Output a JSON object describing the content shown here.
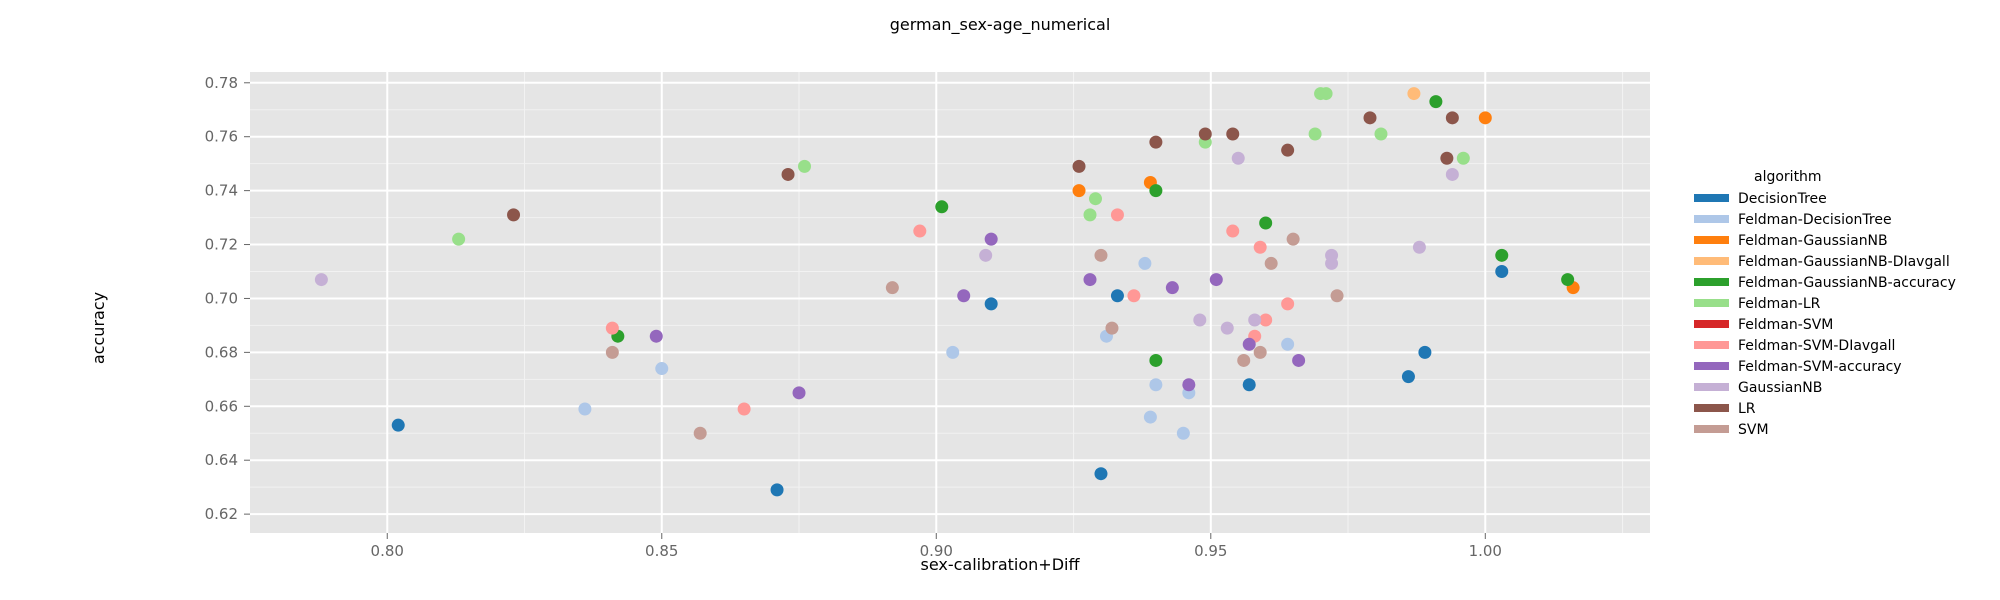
{
  "chart_data": {
    "type": "scatter",
    "title": "german_sex-age_numerical",
    "xlabel": "sex-calibration+Diff",
    "ylabel": "accuracy",
    "xlim": [
      0.775,
      1.03
    ],
    "ylim": [
      0.613,
      0.784
    ],
    "x_ticks": [
      0.8,
      0.85,
      0.9,
      0.95,
      1.0
    ],
    "x_tick_labels": [
      "0.80",
      "0.85",
      "0.90",
      "0.95",
      "1.00"
    ],
    "y_ticks": [
      0.62,
      0.64,
      0.66,
      0.68,
      0.7,
      0.72,
      0.74,
      0.76,
      0.78
    ],
    "y_tick_labels": [
      "0.62",
      "0.64",
      "0.66",
      "0.68",
      "0.70",
      "0.72",
      "0.74",
      "0.76",
      "0.78"
    ],
    "grid": true,
    "legend_title": "algorithm",
    "legend_position": "right",
    "series": [
      {
        "name": "DecisionTree",
        "color": "#1f77b4",
        "points": [
          [
            0.802,
            0.653
          ],
          [
            0.871,
            0.629
          ],
          [
            0.91,
            0.698
          ],
          [
            0.93,
            0.635
          ],
          [
            0.933,
            0.701
          ],
          [
            0.957,
            0.668
          ],
          [
            0.986,
            0.671
          ],
          [
            0.989,
            0.68
          ],
          [
            1.003,
            0.71
          ]
        ]
      },
      {
        "name": "Feldman-DecisionTree",
        "color": "#aec7e8",
        "points": [
          [
            0.836,
            0.659
          ],
          [
            0.85,
            0.674
          ],
          [
            0.903,
            0.68
          ],
          [
            0.931,
            0.686
          ],
          [
            0.938,
            0.713
          ],
          [
            0.939,
            0.656
          ],
          [
            0.94,
            0.668
          ],
          [
            0.945,
            0.65
          ],
          [
            0.946,
            0.665
          ],
          [
            0.964,
            0.683
          ]
        ]
      },
      {
        "name": "Feldman-GaussianNB",
        "color": "#ff7f0e",
        "points": [
          [
            0.926,
            0.74
          ],
          [
            0.939,
            0.743
          ],
          [
            1.0,
            0.767
          ],
          [
            1.016,
            0.704
          ]
        ]
      },
      {
        "name": "Feldman-GaussianNB-DIavgall",
        "color": "#ffbb78",
        "points": [
          [
            0.987,
            0.776
          ]
        ]
      },
      {
        "name": "Feldman-GaussianNB-accuracy",
        "color": "#2ca02c",
        "points": [
          [
            0.842,
            0.686
          ],
          [
            0.901,
            0.734
          ],
          [
            0.94,
            0.74
          ],
          [
            0.94,
            0.677
          ],
          [
            0.96,
            0.728
          ],
          [
            0.991,
            0.773
          ],
          [
            1.003,
            0.716
          ],
          [
            1.015,
            0.707
          ]
        ]
      },
      {
        "name": "Feldman-LR",
        "color": "#98df8a",
        "points": [
          [
            0.813,
            0.722
          ],
          [
            0.876,
            0.749
          ],
          [
            0.928,
            0.731
          ],
          [
            0.929,
            0.737
          ],
          [
            0.949,
            0.758
          ],
          [
            0.969,
            0.761
          ],
          [
            0.97,
            0.776
          ],
          [
            0.971,
            0.776
          ],
          [
            0.981,
            0.761
          ],
          [
            0.996,
            0.752
          ]
        ]
      },
      {
        "name": "Feldman-SVM",
        "color": "#d62728",
        "points": []
      },
      {
        "name": "Feldman-SVM-DIavgall",
        "color": "#ff9896",
        "points": [
          [
            0.841,
            0.689
          ],
          [
            0.865,
            0.659
          ],
          [
            0.897,
            0.725
          ],
          [
            0.933,
            0.731
          ],
          [
            0.936,
            0.701
          ],
          [
            0.954,
            0.725
          ],
          [
            0.958,
            0.686
          ],
          [
            0.959,
            0.719
          ],
          [
            0.96,
            0.692
          ],
          [
            0.964,
            0.698
          ]
        ]
      },
      {
        "name": "Feldman-SVM-accuracy",
        "color": "#9467bd",
        "points": [
          [
            0.849,
            0.686
          ],
          [
            0.875,
            0.665
          ],
          [
            0.905,
            0.701
          ],
          [
            0.91,
            0.722
          ],
          [
            0.928,
            0.707
          ],
          [
            0.943,
            0.704
          ],
          [
            0.946,
            0.668
          ],
          [
            0.951,
            0.707
          ],
          [
            0.957,
            0.683
          ],
          [
            0.966,
            0.677
          ]
        ]
      },
      {
        "name": "GaussianNB",
        "color": "#c5b0d5",
        "points": [
          [
            0.788,
            0.707
          ],
          [
            0.909,
            0.716
          ],
          [
            0.948,
            0.692
          ],
          [
            0.953,
            0.689
          ],
          [
            0.955,
            0.752
          ],
          [
            0.958,
            0.692
          ],
          [
            0.972,
            0.713
          ],
          [
            0.972,
            0.716
          ],
          [
            0.988,
            0.719
          ],
          [
            0.994,
            0.746
          ]
        ]
      },
      {
        "name": "LR",
        "color": "#8c564b",
        "points": [
          [
            0.823,
            0.731
          ],
          [
            0.873,
            0.746
          ],
          [
            0.926,
            0.749
          ],
          [
            0.94,
            0.758
          ],
          [
            0.949,
            0.761
          ],
          [
            0.954,
            0.761
          ],
          [
            0.964,
            0.755
          ],
          [
            0.979,
            0.767
          ],
          [
            0.993,
            0.752
          ],
          [
            0.994,
            0.767
          ]
        ]
      },
      {
        "name": "SVM",
        "color": "#c49c94",
        "points": [
          [
            0.841,
            0.68
          ],
          [
            0.857,
            0.65
          ],
          [
            0.892,
            0.704
          ],
          [
            0.93,
            0.716
          ],
          [
            0.932,
            0.689
          ],
          [
            0.956,
            0.677
          ],
          [
            0.959,
            0.68
          ],
          [
            0.961,
            0.713
          ],
          [
            0.965,
            0.722
          ],
          [
            0.973,
            0.701
          ]
        ]
      }
    ]
  }
}
